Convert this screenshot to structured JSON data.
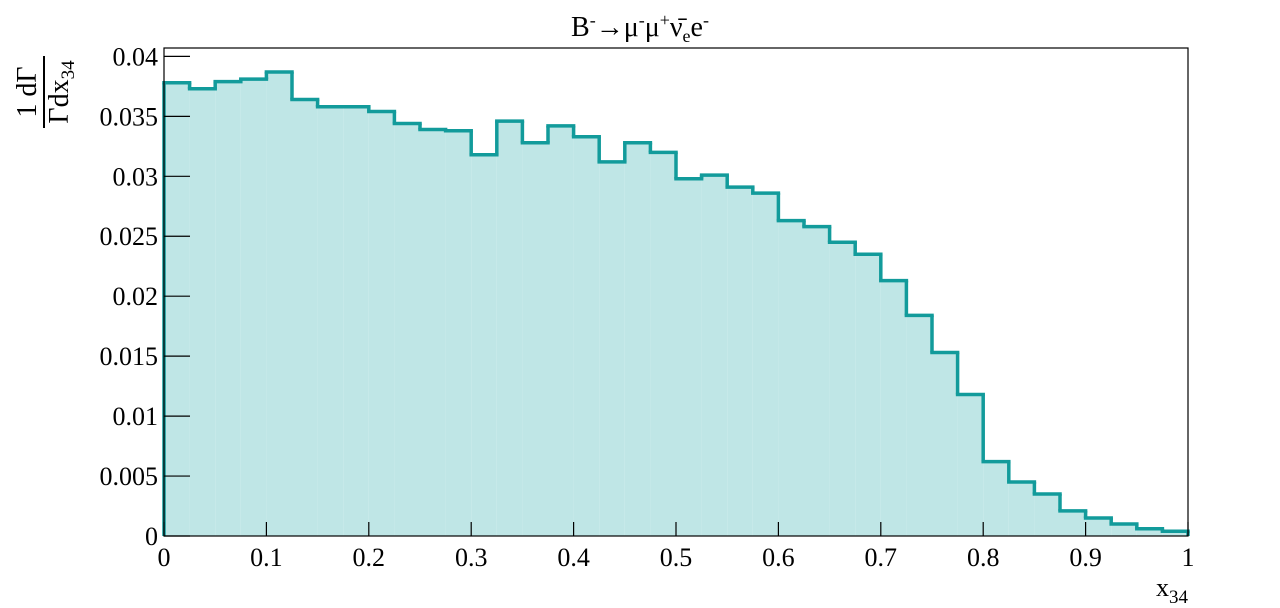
{
  "chart_data": {
    "type": "histogram",
    "title": {
      "parts": [
        "B",
        "-",
        "→μ",
        "-",
        "μ",
        "+",
        "ν̄",
        "e",
        "e",
        "-"
      ]
    },
    "xlabel": {
      "text": "x",
      "sub": "34"
    },
    "ylabel": {
      "numerator": "1 dΓ",
      "denominator": "Γdx",
      "sub": "34"
    },
    "bins": [
      0,
      0.025,
      0.05,
      0.075,
      0.1,
      0.125,
      0.15,
      0.175,
      0.2,
      0.225,
      0.25,
      0.275,
      0.3,
      0.325,
      0.35,
      0.375,
      0.4,
      0.425,
      0.45,
      0.475,
      0.5,
      0.525,
      0.55,
      0.575,
      0.6,
      0.625,
      0.65,
      0.675,
      0.7,
      0.725,
      0.75,
      0.775,
      0.8,
      0.825,
      0.85,
      0.875,
      0.9,
      0.925,
      0.95,
      0.975,
      1
    ],
    "values": [
      0.0378,
      0.0373,
      0.0379,
      0.0381,
      0.0387,
      0.0364,
      0.0358,
      0.0358,
      0.0354,
      0.0344,
      0.0339,
      0.0338,
      0.0318,
      0.0346,
      0.0328,
      0.0342,
      0.0333,
      0.0312,
      0.0328,
      0.032,
      0.0298,
      0.0301,
      0.0291,
      0.0286,
      0.0263,
      0.0258,
      0.0245,
      0.0235,
      0.0213,
      0.0184,
      0.0153,
      0.0118,
      0.0062,
      0.0045,
      0.0035,
      0.0021,
      0.0015,
      0.001,
      0.0006,
      0.0004
    ],
    "color": "#129b9b",
    "fill_color": "#bfe6e6",
    "xlim": [
      0,
      1
    ],
    "ylim": [
      0,
      0.0407
    ],
    "xticks": [
      0,
      0.1,
      0.2,
      0.3,
      0.4,
      0.5,
      0.6,
      0.7,
      0.8,
      0.9,
      1
    ],
    "yticks": [
      0,
      0.005,
      0.01,
      0.015,
      0.02,
      0.025,
      0.03,
      0.035,
      0.04
    ]
  }
}
